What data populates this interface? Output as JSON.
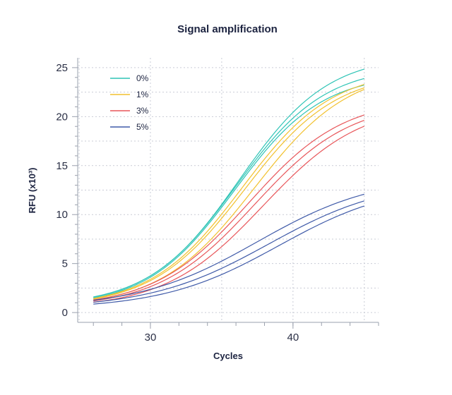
{
  "chart_data": {
    "type": "line",
    "title": "Signal amplification",
    "xlabel": "Cycles",
    "ylabel": "RFU (x10³)",
    "xlim": [
      24.9,
      46
    ],
    "ylim": [
      -1,
      26
    ],
    "x_ticks": [
      30,
      40
    ],
    "y_ticks": [
      0,
      5,
      10,
      15,
      20,
      25
    ],
    "x_range": [
      26,
      45
    ],
    "grid": true,
    "legend_position": "top-left",
    "series": [
      {
        "name": "0%",
        "color": "#2ec4b6",
        "curves": [
          {
            "base": 0.65,
            "top": 26.3,
            "mid": 36.2,
            "k": 0.32
          },
          {
            "base": 0.6,
            "top": 25.2,
            "mid": 36.0,
            "k": 0.32
          },
          {
            "base": 0.55,
            "top": 24.4,
            "mid": 35.9,
            "k": 0.325
          }
        ]
      },
      {
        "name": "1%",
        "color": "#f2c12e",
        "curves": [
          {
            "base": 0.55,
            "top": 24.8,
            "mid": 36.4,
            "k": 0.315
          },
          {
            "base": 0.5,
            "top": 24.6,
            "mid": 36.6,
            "k": 0.31
          },
          {
            "base": 0.45,
            "top": 25.0,
            "mid": 37.3,
            "k": 0.3
          }
        ]
      },
      {
        "name": "3%",
        "color": "#e8565a",
        "curves": [
          {
            "base": 0.5,
            "top": 21.9,
            "mid": 36.9,
            "k": 0.3
          },
          {
            "base": 0.45,
            "top": 21.6,
            "mid": 37.3,
            "k": 0.295
          },
          {
            "base": 0.4,
            "top": 21.4,
            "mid": 37.9,
            "k": 0.29
          }
        ]
      },
      {
        "name": "5%",
        "color": "#3f5aa8",
        "curves": [
          {
            "base": 0.45,
            "top": 14.0,
            "mid": 37.5,
            "k": 0.24
          },
          {
            "base": 0.4,
            "top": 13.6,
            "mid": 38.3,
            "k": 0.24
          },
          {
            "base": 0.35,
            "top": 13.3,
            "mid": 39.0,
            "k": 0.245
          }
        ]
      }
    ]
  }
}
